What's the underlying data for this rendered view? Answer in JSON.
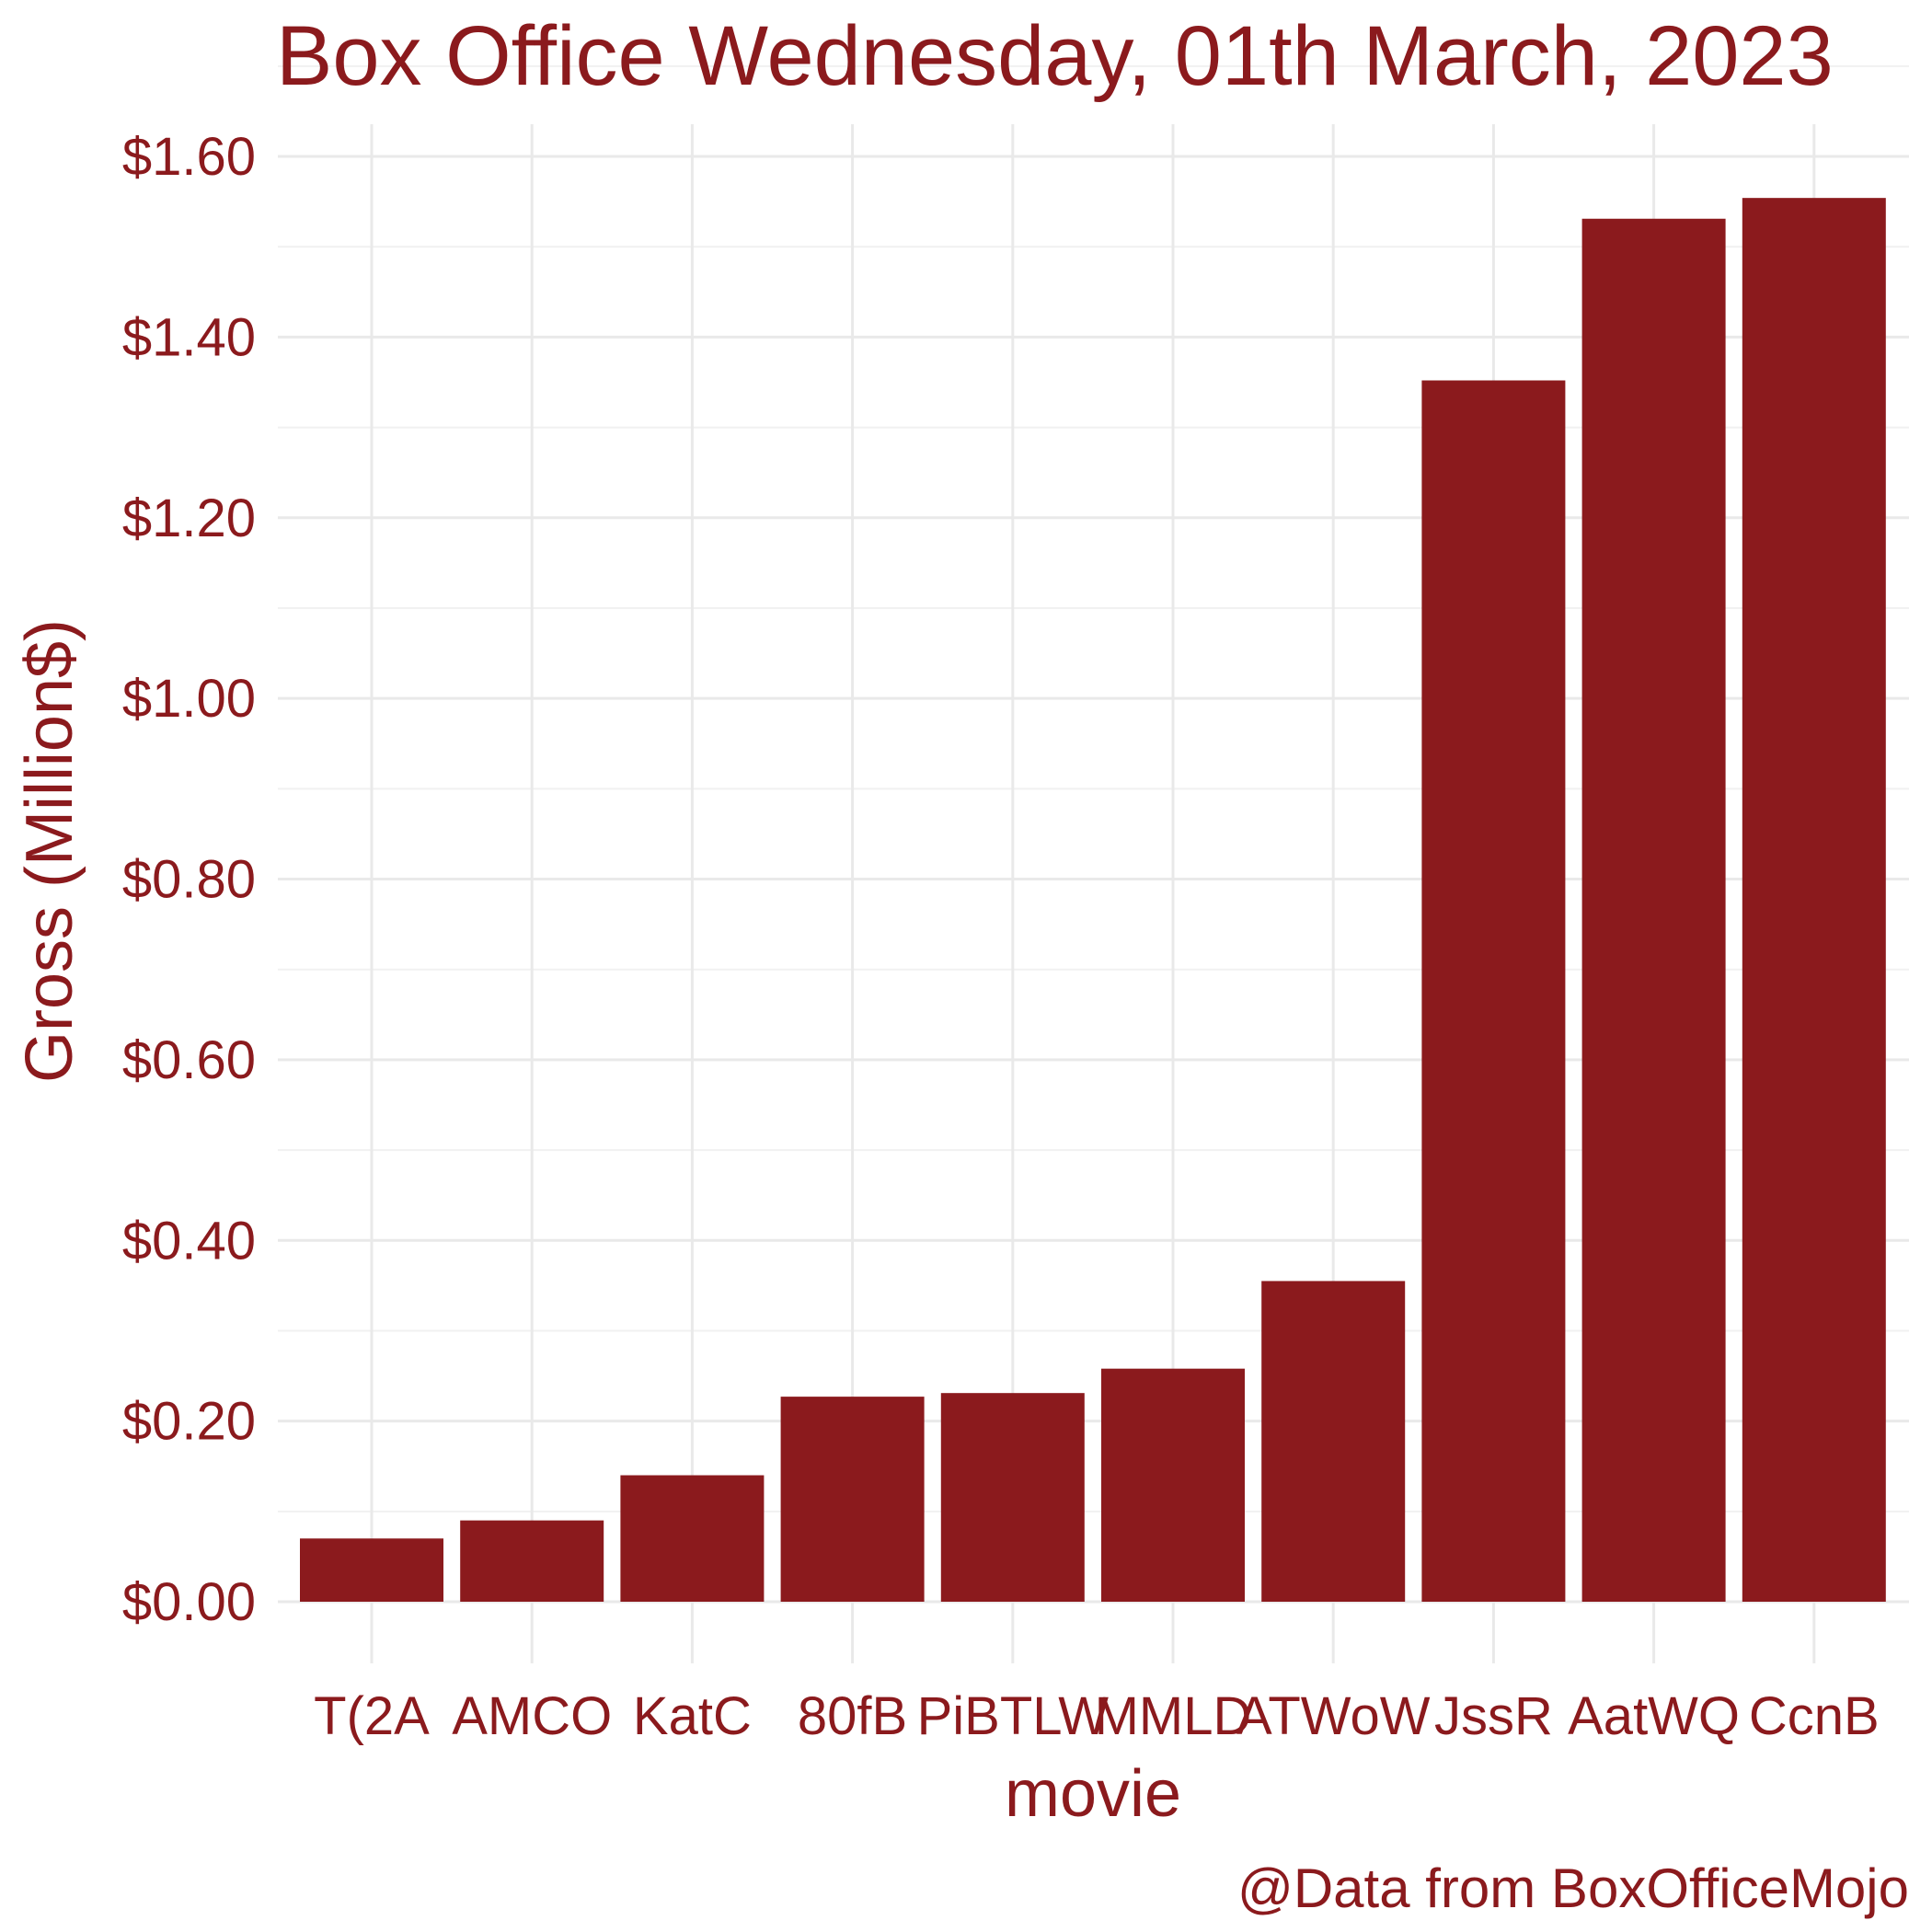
{
  "chart_data": {
    "type": "bar",
    "title": "Box Office Wednesday, 01th March, 2023",
    "xlabel": "movie",
    "ylabel": "Gross (Million$)",
    "caption": "@Data from BoxOfficeMojo",
    "categories": [
      "T(2A",
      "AMCO",
      "KatC",
      "80fB",
      "PiBTLW",
      "MMLD",
      "ATWoW",
      "JssR",
      "AatWQ",
      "CcnB"
    ],
    "values": [
      0.07,
      0.09,
      0.14,
      0.227,
      0.231,
      0.258,
      0.355,
      1.352,
      1.531,
      1.554
    ],
    "yticks": [
      0,
      0.2,
      0.4,
      0.6,
      0.8,
      1.0,
      1.2,
      1.4,
      1.6
    ],
    "ytick_labels": [
      "$0.00",
      "$0.20",
      "$0.40",
      "$0.60",
      "$0.80",
      "$1.00",
      "$1.20",
      "$1.40",
      "$1.60"
    ],
    "ylim": [
      0,
      1.6
    ],
    "grid": true,
    "legend": "none",
    "bar_color": "#8b1a1d",
    "text_color": "#8b1a1d"
  }
}
